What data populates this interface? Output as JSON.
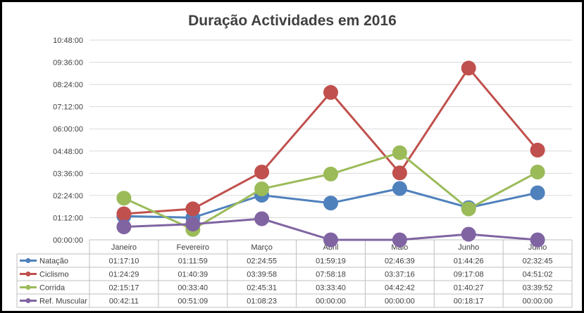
{
  "chart_data": {
    "type": "line",
    "title": "Duração Actividades em 2016",
    "categories": [
      "Janeiro",
      "Fevereiro",
      "Março",
      "Abril",
      "Maio",
      "Junho",
      "Julho"
    ],
    "y_ticks": [
      "00:00:00",
      "01:12:00",
      "02:24:00",
      "03:36:00",
      "04:48:00",
      "06:00:00",
      "07:12:00",
      "08:24:00",
      "09:36:00",
      "10:48:00"
    ],
    "ylim_seconds": [
      0,
      38880
    ],
    "series": [
      {
        "name": "Natação",
        "color": "#4f81bd",
        "values": [
          "01:17:10",
          "01:11:59",
          "02:24:55",
          "01:59:19",
          "02:46:39",
          "01:44:26",
          "02:32:45"
        ]
      },
      {
        "name": "Ciclismo",
        "color": "#c0504d",
        "values": [
          "01:24:29",
          "01:40:39",
          "03:39:58",
          "07:58:18",
          "03:37:16",
          "09:17:08",
          "04:51:02"
        ]
      },
      {
        "name": "Corrida",
        "color": "#9bbb59",
        "values": [
          "02:15:17",
          "00:33:40",
          "02:45:31",
          "03:33:40",
          "04:42:42",
          "01:40:27",
          "03:39:52"
        ]
      },
      {
        "name": "Ref. Muscular",
        "color": "#8064a2",
        "values": [
          "00:42:11",
          "00:51:09",
          "01:08:23",
          "00:00:00",
          "00:00:00",
          "00:18:17",
          "00:00:00"
        ]
      }
    ]
  }
}
